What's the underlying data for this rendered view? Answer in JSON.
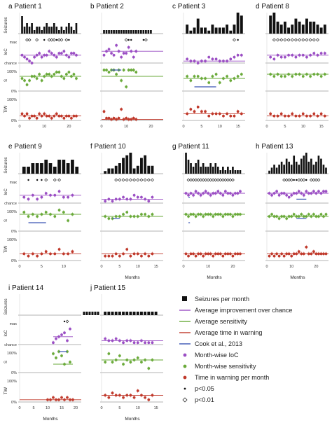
{
  "colors": {
    "seizure": "#111111",
    "ioc": "#9b4fc4",
    "sensitivity": "#6aaa3a",
    "tiw": "#c0392b",
    "cook": "#3a55b4",
    "axis": "#9a9a9a"
  },
  "row_labels": [
    "Seizures",
    "IoC",
    "S",
    "TiW"
  ],
  "ioc_labels": [
    "max",
    "chance"
  ],
  "pct_labels": [
    "100%",
    "0%"
  ],
  "x_title": "Months",
  "legend": [
    {
      "key": "seizure",
      "kind": "square",
      "label": "Seizures per month"
    },
    {
      "key": "ioc",
      "kind": "line",
      "label": "Average improvement over chance"
    },
    {
      "key": "sensitivity",
      "kind": "line",
      "label": "Average sensitivity"
    },
    {
      "key": "tiw",
      "kind": "line",
      "label": "Average time in warning"
    },
    {
      "key": "cook",
      "kind": "line",
      "label": "Cook et al., 2013"
    },
    {
      "key": "ioc",
      "kind": "dot",
      "label": "Month-wise IoC"
    },
    {
      "key": "sensitivity",
      "kind": "dot",
      "label": "Month-wise sensitivity"
    },
    {
      "key": "tiw",
      "kind": "dot",
      "label": "Time in warning per month"
    },
    {
      "key": "p05",
      "kind": "filled",
      "label": "p<0.05"
    },
    {
      "key": "p01",
      "kind": "open",
      "label": "p<0.01"
    }
  ],
  "chart_data": [
    {
      "type": "bar+scatter",
      "title": "a Patient 1",
      "xticks": [
        0,
        10,
        20
      ],
      "xlim": [
        0,
        25
      ],
      "show_xlabel": false,
      "seizures": [
        5,
        2,
        3,
        2,
        3,
        1,
        2,
        2,
        1,
        2,
        3,
        2,
        2,
        3,
        2,
        1,
        2,
        1,
        2,
        3,
        2,
        1,
        3
      ],
      "ioc": [
        0.4,
        0.3,
        0.2,
        0.1,
        0.0,
        0.3,
        0.4,
        0.5,
        0.3,
        0.4,
        0.4,
        0.6,
        0.5,
        0.4,
        0.3,
        0.5,
        0.5,
        0.6,
        0.4,
        0.3,
        0.5,
        0.5,
        0.4
      ],
      "ioc_avg": 0.4,
      "sens": [
        0.6,
        0.5,
        0.3,
        0.5,
        0.7,
        0.7,
        0.6,
        0.8,
        0.5,
        0.7,
        0.8,
        0.8,
        0.7,
        0.8,
        0.9,
        0.9,
        0.7,
        0.6,
        0.8,
        0.9,
        0.7,
        0.8,
        0.6
      ],
      "sens_avg": 0.7,
      "tiw": [
        0.3,
        0.2,
        0.3,
        0.1,
        0.2,
        0.2,
        0.1,
        0.3,
        0.2,
        0.3,
        0.2,
        0.2,
        0.1,
        0.2,
        0.3,
        0.2,
        0.2,
        0.1,
        0.2,
        0.2,
        0.1,
        0.2,
        0.2
      ],
      "tiw_avg": 0.2,
      "sig_open": [
        3,
        4,
        7,
        12,
        13,
        14,
        16,
        17,
        19
      ],
      "sig_filled": [
        10,
        15,
        20
      ]
    },
    {
      "type": "bar+scatter",
      "title": "b Patient 2",
      "xticks": [
        0,
        10,
        20
      ],
      "xlim": [
        0,
        25
      ],
      "show_xlabel": false,
      "seizures": [
        1,
        1,
        1,
        1,
        1,
        1,
        1,
        1,
        1,
        1,
        1,
        1,
        1,
        1,
        1,
        1,
        1,
        1,
        1,
        1
      ],
      "ioc": [
        0.4,
        0.6,
        0.7,
        0.5,
        0.4,
        0.9,
        0.6,
        0.3,
        0.5,
        0.5,
        0.8,
        0.6,
        0.3,
        0.6
      ],
      "ioc_avg": 0.6,
      "sens": [
        1.0,
        1.0,
        0.9,
        1.0,
        1.0,
        0.8,
        1.0,
        0.5,
        1.0,
        0.2,
        1.0,
        1.0,
        1.0,
        0.9
      ],
      "sens_avg": 0.7,
      "tiw": [
        0.4,
        0.1,
        0.1,
        0.05,
        0.1,
        0.05,
        0.1,
        0.5,
        0.05,
        0.1,
        0.05,
        0.05,
        0.1,
        0.05
      ],
      "tiw_avg": 0.05,
      "sig_open": [
        10,
        18
      ],
      "sig_filled": [
        11,
        12,
        17
      ],
      "cook_sens": {
        "x": [
          4,
          8
        ],
        "v": 1.0
      }
    },
    {
      "type": "bar+scatter",
      "title": "c Patient 3",
      "xticks": [
        0,
        5,
        10,
        15
      ],
      "xlim": [
        0,
        17
      ],
      "show_xlabel": false,
      "seizures": [
        3,
        1,
        2,
        5,
        2,
        2,
        1,
        3,
        2,
        2,
        2,
        3,
        1,
        3,
        7,
        6
      ],
      "ioc": [
        0.2,
        0.1,
        0.1,
        0.0,
        0.1,
        0.1,
        0.3,
        0.2,
        0.2,
        0.1,
        0.1,
        0.1,
        0.2,
        0.3,
        0.4,
        0.4
      ],
      "ioc_avg": 0.1,
      "sens": [
        0.7,
        0.5,
        0.7,
        0.7,
        0.6,
        0.6,
        0.4,
        0.7,
        0.8,
        0.4,
        0.6,
        0.7,
        0.5,
        0.6,
        0.7,
        0.8
      ],
      "sens_avg": 0.6,
      "tiw": [
        0.3,
        0.5,
        0.4,
        0.6,
        0.4,
        0.4,
        0.2,
        0.3,
        0.3,
        0.3,
        0.2,
        0.3,
        0.2,
        0.2,
        0.4,
        0.3
      ],
      "tiw_avg": 0.3,
      "sig_open": [
        14
      ],
      "sig_filled": [
        15
      ],
      "cook_sens": {
        "x": [
          3,
          9
        ],
        "v": 0.2
      }
    },
    {
      "type": "bar+scatter",
      "title": "d Patient 8",
      "xticks": [
        0,
        5,
        10,
        15
      ],
      "xlim": [
        0,
        17
      ],
      "show_xlabel": false,
      "seizures": [
        6,
        7,
        4,
        3,
        4,
        2,
        3,
        5,
        4,
        3,
        5,
        4,
        4,
        3,
        2,
        3
      ],
      "ioc": [
        0.3,
        0.2,
        0.4,
        0.3,
        0.3,
        0.4,
        0.4,
        0.3,
        0.4,
        0.4,
        0.3,
        0.4,
        0.5,
        0.4,
        0.5,
        0.5
      ],
      "ioc_avg": 0.4,
      "sens": [
        0.8,
        0.7,
        0.8,
        0.7,
        0.7,
        0.8,
        0.7,
        0.8,
        0.8,
        0.7,
        0.8,
        0.7,
        0.8,
        0.8,
        0.7,
        0.8
      ],
      "sens_avg": 0.8,
      "tiw": [
        0.3,
        0.2,
        0.2,
        0.3,
        0.2,
        0.2,
        0.3,
        0.2,
        0.2,
        0.3,
        0.2,
        0.2,
        0.3,
        0.2,
        0.3,
        0.2
      ],
      "tiw_avg": 0.2,
      "sig_open": [
        2,
        3,
        4,
        5,
        6,
        7,
        8,
        9,
        10,
        11,
        12,
        13,
        14
      ],
      "sig_filled": []
    },
    {
      "type": "bar+scatter",
      "title": "e Patient 9",
      "xticks": [
        0,
        5,
        10
      ],
      "xlim": [
        0,
        14
      ],
      "show_xlabel": false,
      "seizures": [
        2,
        2,
        3,
        3,
        3,
        4,
        3,
        2,
        4,
        4,
        3,
        4,
        2
      ],
      "ioc": [
        0.3,
        0.2,
        0.4,
        0.2,
        0.3,
        0.5,
        0.4,
        0.4,
        0.6,
        0.3,
        0.3,
        0.4
      ],
      "ioc_avg": 0.4,
      "sens": [
        0.9,
        0.7,
        0.8,
        0.7,
        0.8,
        0.9,
        0.8,
        0.7,
        1.0,
        0.9,
        0.5,
        0.8
      ],
      "sens_avg": 0.8,
      "tiw": [
        0.3,
        0.2,
        0.3,
        0.2,
        0.3,
        0.4,
        0.3,
        0.3,
        0.5,
        0.3,
        0.3,
        0.4
      ],
      "tiw_avg": 0.3,
      "sig_open": [
        6,
        8,
        9
      ],
      "sig_filled": [
        2,
        4,
        5
      ],
      "cook_sens": {
        "x": [
          2,
          6
        ],
        "v": 0.4
      }
    },
    {
      "type": "bar+scatter",
      "title": "f Patient 10",
      "xticks": [
        0,
        5,
        10,
        15
      ],
      "xlim": [
        0,
        17
      ],
      "show_xlabel": true,
      "seizures": [
        1,
        2,
        2,
        3,
        4,
        6,
        7,
        8,
        2,
        3,
        6,
        7,
        3,
        3
      ],
      "ioc": [
        0.1,
        0.2,
        0.1,
        0.2,
        0.2,
        0.3,
        0.2,
        0.2,
        0.4,
        0.3,
        0.3,
        0.2,
        0.1,
        0.3
      ],
      "ioc_avg": 0.2,
      "sens": [
        0.7,
        0.6,
        0.6,
        0.7,
        0.7,
        0.8,
        0.9,
        0.7,
        0.7,
        0.7,
        0.8,
        0.8,
        0.7,
        0.8
      ],
      "sens_avg": 0.7,
      "tiw": [
        0.2,
        0.2,
        0.2,
        0.3,
        0.2,
        0.3,
        0.5,
        0.2,
        0.3,
        0.3,
        0.2,
        0.3,
        0.2,
        0.3
      ],
      "tiw_avg": 0.3,
      "sig_open": [
        4,
        5,
        6,
        7,
        8,
        9,
        10,
        11,
        12,
        13,
        14
      ],
      "sig_filled": [],
      "cook_sens": {
        "x": [
          3,
          5
        ],
        "v": 0.6
      }
    },
    {
      "type": "bar+scatter",
      "title": "g Patient 11",
      "xticks": [
        0,
        10,
        20
      ],
      "xlim": [
        0,
        25
      ],
      "show_xlabel": true,
      "seizures": [
        6,
        4,
        3,
        2,
        3,
        4,
        2,
        3,
        2,
        2,
        3,
        2,
        3,
        2,
        1,
        2,
        1,
        2,
        1,
        2,
        1,
        1,
        1
      ],
      "ioc": [
        0.5,
        0.4,
        0.5,
        0.4,
        0.6,
        0.5,
        0.4,
        0.5,
        0.6,
        0.5,
        0.4,
        0.5,
        0.5,
        0.6,
        0.5,
        0.4,
        0.6,
        0.5,
        0.5,
        0.4,
        0.5,
        0.5,
        0.6
      ],
      "ioc_avg": 0.5,
      "sens": [
        0.8,
        0.7,
        0.8,
        0.8,
        0.7,
        0.8,
        0.8,
        0.7,
        0.8,
        0.8,
        0.8,
        0.7,
        0.8,
        0.8,
        0.8,
        0.7,
        0.8,
        0.8,
        0.8,
        0.7,
        0.8,
        0.8,
        0.8
      ],
      "sens_avg": 0.8,
      "tiw": [
        0.3,
        0.2,
        0.3,
        0.3,
        0.2,
        0.3,
        0.3,
        0.2,
        0.3,
        0.3,
        0.3,
        0.2,
        0.3,
        0.3,
        0.3,
        0.2,
        0.3,
        0.3,
        0.3,
        0.2,
        0.3,
        0.3,
        0.3
      ],
      "tiw_avg": 0.3,
      "sig_open": [
        2,
        3,
        4,
        5,
        6,
        7,
        8,
        9,
        10,
        11,
        12,
        13,
        14,
        15,
        16,
        17,
        18,
        19,
        20
      ],
      "sig_filled": [],
      "cook_ioc": {
        "x": [
          2,
          2.6
        ],
        "v": 0.3
      },
      "cook_sens": {
        "x": [
          2,
          2.6
        ],
        "v": 0.4
      }
    },
    {
      "type": "bar+scatter",
      "title": "h Patient 13",
      "xticks": [
        0,
        10,
        20
      ],
      "xlim": [
        0,
        25
      ],
      "show_xlabel": true,
      "seizures": [
        1,
        2,
        3,
        2,
        3,
        4,
        3,
        5,
        4,
        3,
        6,
        4,
        3,
        5,
        6,
        7,
        4,
        5,
        3,
        4,
        6,
        5,
        3,
        2
      ],
      "ioc": [
        0.5,
        0.4,
        0.5,
        0.6,
        0.4,
        0.5,
        0.5,
        0.4,
        0.3,
        0.4,
        0.5,
        0.5,
        0.6,
        0.5,
        0.4,
        0.6,
        0.5,
        0.5,
        0.6,
        0.5,
        0.6,
        0.5,
        0.6,
        0.6
      ],
      "ioc_avg": 0.5,
      "sens": [
        0.7,
        0.8,
        0.7,
        0.7,
        0.6,
        0.7,
        0.7,
        0.6,
        0.7,
        0.7,
        0.8,
        0.7,
        0.7,
        0.8,
        0.7,
        0.7,
        0.8,
        0.7,
        0.8,
        0.7,
        0.7,
        0.8,
        0.7,
        0.8
      ],
      "sens_avg": 0.7,
      "tiw": [
        0.2,
        0.3,
        0.2,
        0.3,
        0.2,
        0.3,
        0.2,
        0.3,
        0.3,
        0.2,
        0.3,
        0.3,
        0.4,
        0.3,
        0.3,
        0.6,
        0.3,
        0.3,
        0.4,
        0.3,
        0.3,
        0.3,
        0.3,
        0.3
      ],
      "tiw_avg": 0.3,
      "sig_open": [
        7,
        8,
        9,
        10,
        13,
        14,
        15,
        18,
        19,
        20,
        21
      ],
      "sig_filled": [
        11,
        12,
        16
      ],
      "cook_ioc": {
        "x": [
          12,
          16
        ],
        "v": 0.2
      },
      "cook_sens": {
        "x": [
          12,
          16
        ],
        "v": 0.6
      }
    },
    {
      "type": "bar+scatter",
      "title": "i Patient 14",
      "xticks": [
        0,
        5,
        10,
        15,
        20
      ],
      "xlim": [
        0,
        22
      ],
      "show_xlabel": true,
      "seizures": [
        0,
        0,
        0,
        0,
        0,
        0,
        0,
        0,
        0,
        0,
        0,
        0,
        0,
        1,
        1,
        1,
        1,
        1,
        1
      ],
      "seizure_start": 10,
      "ioc": [
        0.1,
        0.3,
        0.4,
        0.5,
        0.6,
        0.2,
        0.8
      ],
      "ioc_start": 12,
      "ioc_avg": 0.4,
      "ioc_avg_x": [
        12,
        19
      ],
      "sens": [
        0.9,
        0.7,
        1.0,
        0.8,
        0.4,
        1.0,
        0.5
      ],
      "sens_start": 12,
      "sens_avg": 0.4,
      "sens_avg_x": [
        12,
        19
      ],
      "tiw": [
        0.1,
        0.1,
        0.2,
        0.1,
        0.1,
        0.2,
        0.1,
        0.2,
        0.1,
        0.1
      ],
      "tiw_start": 10,
      "tiw_avg": 0.1,
      "sig_open": [
        17
      ],
      "sig_filled": [
        16
      ],
      "cook_sens": {
        "x": [
          14,
          17
        ],
        "v": 1.0
      }
    },
    {
      "type": "bar+scatter",
      "title": "j Patient 15",
      "xticks": [
        0,
        5,
        10,
        15
      ],
      "xlim": [
        0,
        17
      ],
      "show_xlabel": true,
      "seizures": [
        1,
        1,
        1,
        1,
        1,
        1,
        1,
        1,
        1,
        1,
        1,
        1,
        1,
        1,
        1
      ],
      "ioc": [
        0.3,
        0.2,
        0.2,
        0.3,
        0.2,
        0.1,
        0.2,
        0.2,
        0.1,
        0.1,
        0.2,
        0.1,
        0.1,
        0.1
      ],
      "ioc_avg": 0.2,
      "sens": [
        0.5,
        0.9,
        0.5,
        0.6,
        0.8,
        0.4,
        0.6,
        0.5,
        0.6,
        0.7,
        0.5,
        0.6,
        0.2,
        0.6
      ],
      "sens_avg": 0.6,
      "tiw": [
        0.3,
        0.2,
        0.4,
        0.3,
        0.3,
        0.2,
        0.3,
        0.3,
        0.2,
        0.5,
        0.3,
        0.2,
        0.1,
        0.3
      ],
      "tiw_avg": 0.3,
      "sig_open": [],
      "sig_filled": []
    }
  ]
}
